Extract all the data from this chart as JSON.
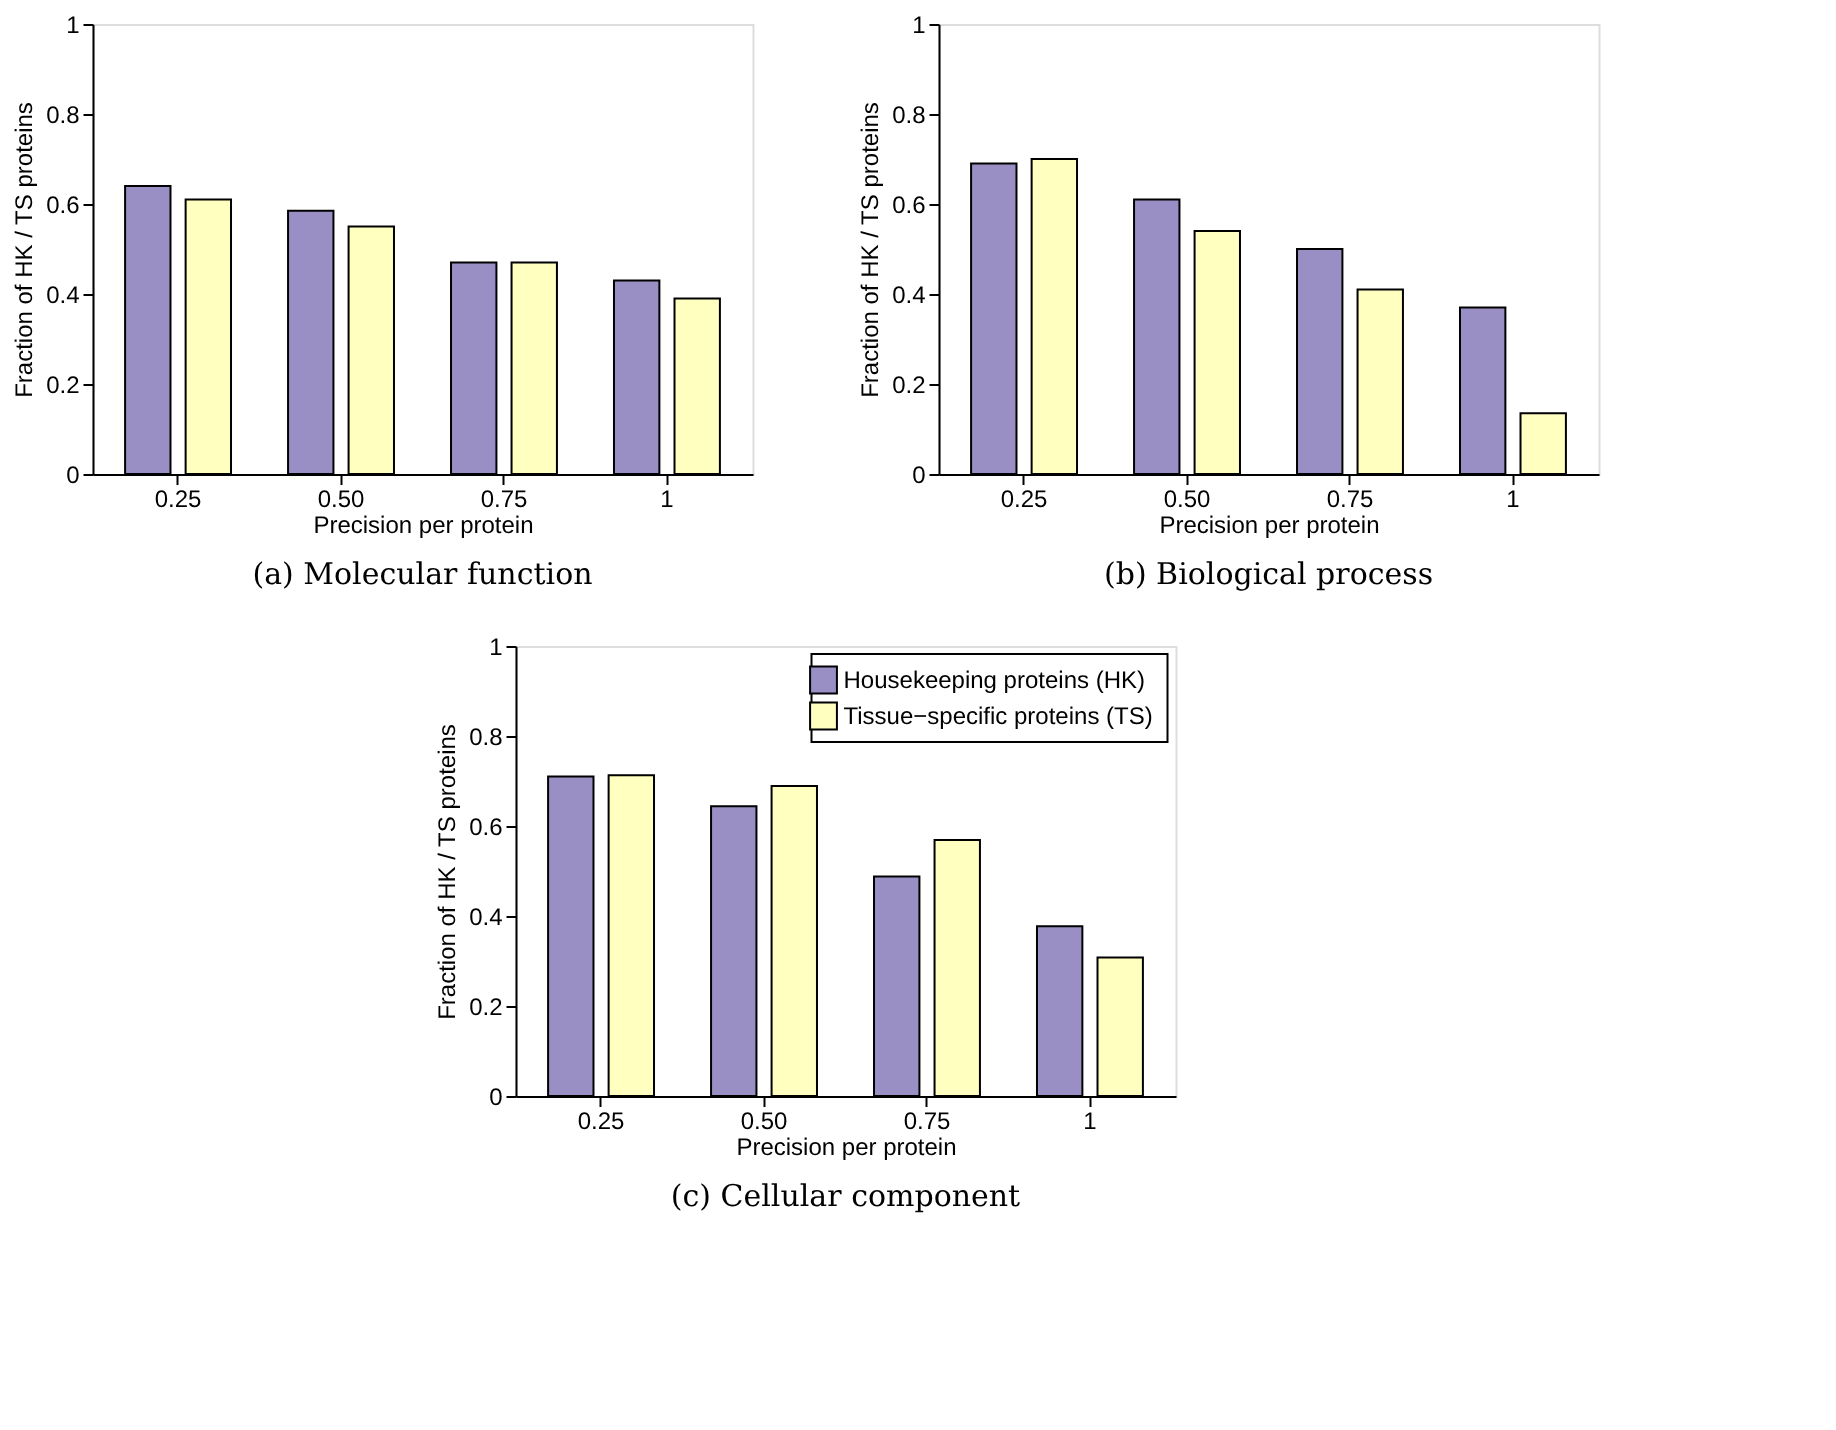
{
  "chart_data": [
    {
      "type": "bar",
      "title": "(a) Molecular function",
      "xlabel": "Precision per protein",
      "ylabel": "Fraction of HK / TS proteins",
      "categories": [
        "0.25",
        "0.50",
        "0.75",
        "1"
      ],
      "ylim": [
        0,
        1
      ],
      "yticks": [
        0,
        0.2,
        0.4,
        0.6,
        0.8,
        1
      ],
      "grid": false,
      "legend": false,
      "series": [
        {
          "color": "#9a8fc4",
          "values": [
            0.64,
            0.585,
            0.47,
            0.43
          ]
        },
        {
          "color": "#ffffc0",
          "values": [
            0.61,
            0.55,
            0.47,
            0.39
          ]
        }
      ]
    },
    {
      "type": "bar",
      "title": "(b) Biological process",
      "xlabel": "Precision per protein",
      "ylabel": "Fraction of HK / TS proteins",
      "categories": [
        "0.25",
        "0.50",
        "0.75",
        "1"
      ],
      "ylim": [
        0,
        1
      ],
      "yticks": [
        0,
        0.2,
        0.4,
        0.6,
        0.8,
        1
      ],
      "grid": false,
      "legend": false,
      "series": [
        {
          "color": "#9a8fc4",
          "values": [
            0.69,
            0.61,
            0.5,
            0.37
          ]
        },
        {
          "color": "#ffffc0",
          "values": [
            0.7,
            0.54,
            0.41,
            0.135
          ]
        }
      ]
    },
    {
      "type": "bar",
      "title": "(c) Cellular component",
      "xlabel": "Precision per protein",
      "ylabel": "Fraction of HK / TS proteins",
      "categories": [
        "0.25",
        "0.50",
        "0.75",
        "1"
      ],
      "ylim": [
        0,
        1
      ],
      "yticks": [
        0,
        0.2,
        0.4,
        0.6,
        0.8,
        1
      ],
      "grid": false,
      "legend": "top right",
      "series": [
        {
          "name": "Housekeeping proteins (HK)",
          "color": "#9a8fc4",
          "values": [
            0.71,
            0.644,
            0.488,
            0.377
          ]
        },
        {
          "name": "Tissue−specific proteins (TS)",
          "color": "#ffffc0",
          "values": [
            0.713,
            0.689,
            0.569,
            0.308
          ]
        }
      ]
    }
  ]
}
